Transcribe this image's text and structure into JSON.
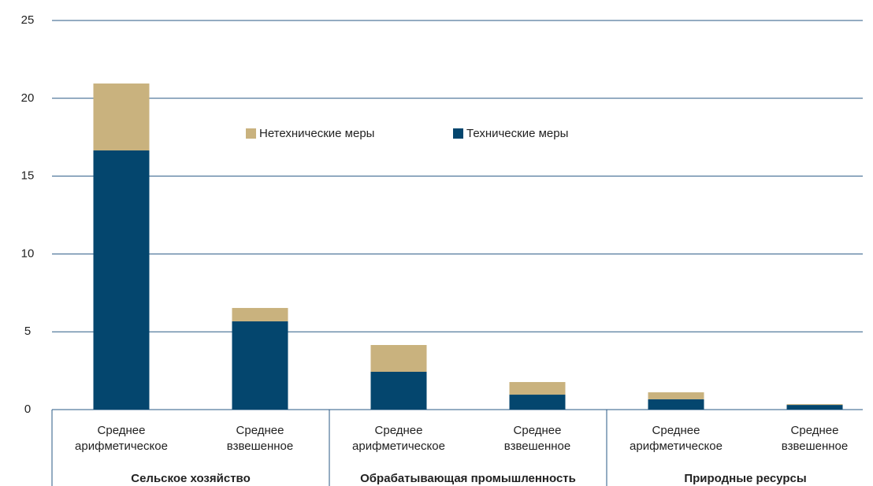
{
  "chart_data": {
    "type": "stacked_bar",
    "categories": [
      "Среднее арифметическое",
      "Среднее взвешенное",
      "Среднее арифметическое",
      "Среднее взвешенное",
      "Среднее арифметическое",
      "Среднее взвешенное"
    ],
    "groups": [
      "Сельское хозяйство",
      "Обрабатывающая промышленность",
      "Природные ресурсы"
    ],
    "series": [
      {
        "name": "Технические меры",
        "color": "#04466e",
        "values": [
          16.65,
          5.67,
          2.43,
          0.96,
          0.66,
          0.3
        ]
      },
      {
        "name": "Нетехнические меры",
        "color": "#c9b27e",
        "values": [
          4.3,
          0.86,
          1.72,
          0.81,
          0.45,
          0.05
        ]
      }
    ],
    "ylim": [
      0,
      25
    ],
    "yticks": [
      0,
      5,
      10,
      15,
      20,
      25
    ],
    "grid": true
  }
}
